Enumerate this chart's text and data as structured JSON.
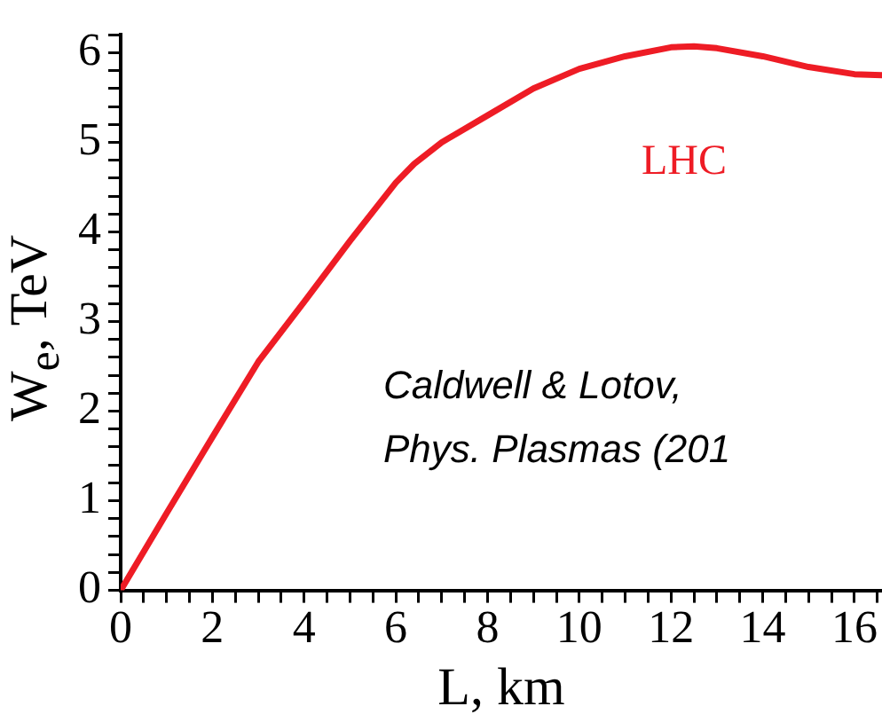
{
  "chart_data": {
    "type": "line",
    "xlabel": "L, km",
    "ylabel": "W$_{e}$, TeV",
    "annotations": [
      "Caldwell & Lotov,",
      "Phys. Plasmas (201"
    ],
    "x": [
      0,
      1,
      2,
      3,
      4,
      5,
      6,
      6.4,
      7,
      8,
      9,
      10,
      11,
      12,
      12.5,
      13,
      14,
      15,
      16,
      16.6
    ],
    "series": [
      {
        "name": "LHC",
        "color": "#ee1c25",
        "values": [
          0,
          0.86,
          1.71,
          2.55,
          3.22,
          3.9,
          4.55,
          4.76,
          5.0,
          5.3,
          5.6,
          5.82,
          5.96,
          6.06,
          6.07,
          6.05,
          5.96,
          5.84,
          5.76,
          5.75
        ]
      }
    ],
    "xlim": [
      0,
      16.6
    ],
    "ylim": [
      0,
      6.2
    ],
    "xticks": [
      0,
      {
        "value": 0.5,
        "label": null
      },
      {
        "value": 1,
        "label": null
      },
      {
        "value": 1.5,
        "label": null
      },
      2,
      {
        "value": 2.5,
        "label": null
      },
      {
        "value": 3,
        "label": null
      },
      {
        "value": 3.5,
        "label": null
      },
      4,
      {
        "value": 4.5,
        "label": null
      },
      {
        "value": 5,
        "label": null
      },
      {
        "value": 5.5,
        "label": null
      },
      6,
      {
        "value": 6.5,
        "label": null
      },
      {
        "value": 7,
        "label": null
      },
      {
        "value": 7.5,
        "label": null
      },
      8,
      {
        "value": 8.5,
        "label": null
      },
      {
        "value": 9,
        "label": null
      },
      {
        "value": 9.5,
        "label": null
      },
      10,
      {
        "value": 10.5,
        "label": null
      },
      {
        "value": 11,
        "label": null
      },
      {
        "value": 11.5,
        "label": null
      },
      12,
      {
        "value": 12.5,
        "label": null
      },
      {
        "value": 13,
        "label": null
      },
      {
        "value": 13.5,
        "label": null
      },
      14,
      {
        "value": 14.5,
        "label": null
      },
      {
        "value": 15,
        "label": null
      },
      {
        "value": 15.5,
        "label": null
      },
      16,
      {
        "value": 16.5,
        "label": null
      }
    ],
    "yticks": [
      0,
      {
        "value": 0.2,
        "label": null
      },
      {
        "value": 0.4,
        "label": null
      },
      {
        "value": 0.6,
        "label": null
      },
      {
        "value": 0.8,
        "label": null
      },
      1,
      {
        "value": 1.2,
        "label": null
      },
      {
        "value": 1.4,
        "label": null
      },
      {
        "value": 1.6,
        "label": null
      },
      {
        "value": 1.8,
        "label": null
      },
      2,
      {
        "value": 2.2,
        "label": null
      },
      {
        "value": 2.4,
        "label": null
      },
      {
        "value": 2.6,
        "label": null
      },
      {
        "value": 2.8,
        "label": null
      },
      3,
      {
        "value": 3.2,
        "label": null
      },
      {
        "value": 3.4,
        "label": null
      },
      {
        "value": 3.6,
        "label": null
      },
      {
        "value": 3.8,
        "label": null
      },
      4,
      {
        "value": 4.2,
        "label": null
      },
      {
        "value": 4.4,
        "label": null
      },
      {
        "value": 4.6,
        "label": null
      },
      {
        "value": 4.8,
        "label": null
      },
      5,
      {
        "value": 5.2,
        "label": null
      },
      {
        "value": 5.4,
        "label": null
      },
      {
        "value": 5.6,
        "label": null
      },
      {
        "value": 5.8,
        "label": null
      },
      6,
      {
        "value": 6.2,
        "label": null
      }
    ],
    "grid": false,
    "legend": false,
    "marker": "none",
    "line_style": "solid"
  }
}
